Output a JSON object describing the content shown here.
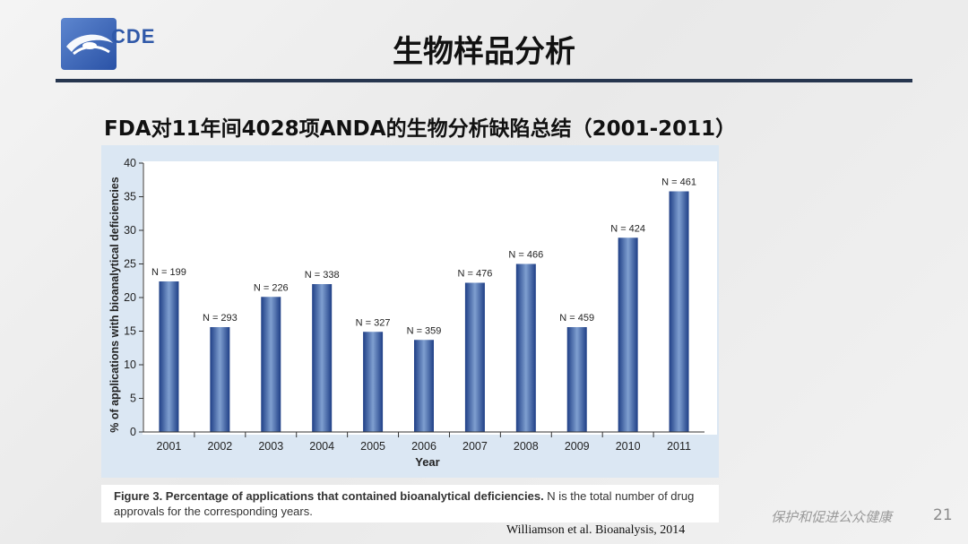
{
  "header": {
    "logo_text": "CDE",
    "title": "生物样品分析"
  },
  "subtitle": "FDA对11年间4028项ANDA的生物分析缺陷总结（2001-2011）",
  "chart_data": {
    "type": "bar",
    "categories": [
      "2001",
      "2002",
      "2003",
      "2004",
      "2005",
      "2006",
      "2007",
      "2008",
      "2009",
      "2010",
      "2011"
    ],
    "values": [
      22.4,
      15.6,
      20.1,
      22.0,
      14.9,
      13.7,
      22.2,
      25.0,
      15.6,
      28.9,
      35.8
    ],
    "bar_labels": [
      "N = 199",
      "N = 293",
      "N = 226",
      "N = 338",
      "N = 327",
      "N = 359",
      "N = 476",
      "N = 466",
      "N = 459",
      "N = 424",
      "N = 461"
    ],
    "xlabel": "Year",
    "ylabel": "% of applications with bioanalytical deficiencies",
    "ylim": [
      0,
      40
    ],
    "yticks": [
      0,
      5,
      10,
      15,
      20,
      25,
      30,
      35,
      40
    ],
    "grid": false,
    "colors": {
      "bar_edge": "#1f3f86",
      "bar_center": "#7f9fd0",
      "panel_bg": "#ffffff",
      "figure_bg": "#dbe7f3"
    }
  },
  "caption": {
    "bold": "Figure 3. Percentage of applications that contained bioanalytical deficiencies.",
    "rest": " N is the total number of drug approvals for the corresponding years."
  },
  "source": "Williamson et al.  Bioanalysis, 2014",
  "footer": {
    "slogan": "保护和促进公众健康",
    "page_number": "21"
  }
}
